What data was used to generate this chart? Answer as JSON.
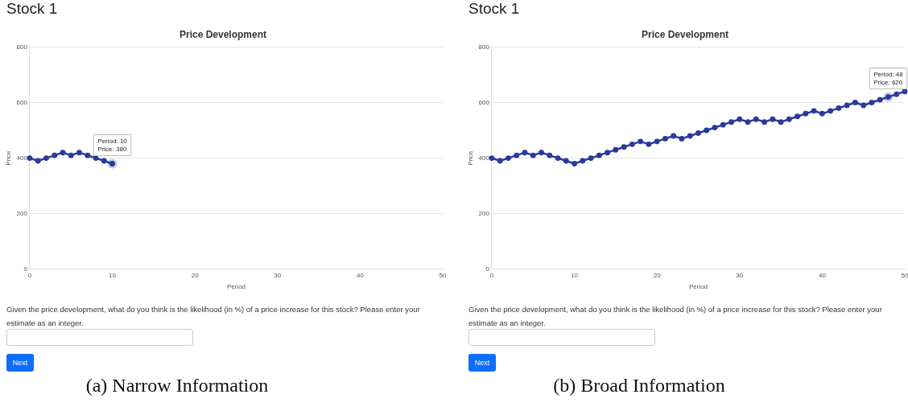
{
  "chart_data": [
    {
      "type": "line",
      "title": "Price Development",
      "xlabel": "Period",
      "ylabel": "Price",
      "x": [
        0,
        1,
        2,
        3,
        4,
        5,
        6,
        7,
        8,
        9,
        10
      ],
      "series": [
        {
          "color": "#2b3a9e",
          "values": [
            400,
            390,
            400,
            410,
            420,
            410,
            420,
            410,
            400,
            390,
            380
          ]
        }
      ],
      "xlim": [
        0,
        50
      ],
      "xticks": [
        0,
        10,
        20,
        30,
        40,
        50
      ],
      "ylim": [
        0,
        800
      ],
      "yticks": [
        0,
        200,
        400,
        600,
        800
      ],
      "grid": "y",
      "legend": false,
      "marker": "circle",
      "line_style": "solid",
      "annotations": [
        "Stock 1",
        "Given the price development, what do you think is the likelihood (in %) of a price increase for this stock? Please enter your estimate as an integer.",
        "Next",
        "(a) Narrow Information",
        {
          "text": "Period: 10\nPrice: 380",
          "x": 10,
          "y": 380
        }
      ]
    },
    {
      "type": "line",
      "title": "Price Development",
      "xlabel": "Period",
      "ylabel": "Price",
      "x": [
        0,
        1,
        2,
        3,
        4,
        5,
        6,
        7,
        8,
        9,
        10,
        11,
        12,
        13,
        14,
        15,
        16,
        17,
        18,
        19,
        20,
        21,
        22,
        23,
        24,
        25,
        26,
        27,
        28,
        29,
        30,
        31,
        32,
        33,
        34,
        35,
        36,
        37,
        38,
        39,
        40,
        41,
        42,
        43,
        44,
        45,
        46,
        47,
        48,
        49,
        50
      ],
      "series": [
        {
          "color": "#2b3a9e",
          "values": [
            400,
            390,
            400,
            410,
            420,
            410,
            420,
            410,
            400,
            390,
            380,
            390,
            400,
            410,
            420,
            430,
            440,
            450,
            460,
            450,
            460,
            470,
            480,
            470,
            480,
            490,
            500,
            510,
            520,
            530,
            540,
            530,
            540,
            530,
            540,
            530,
            540,
            550,
            560,
            570,
            560,
            570,
            580,
            590,
            600,
            590,
            600,
            610,
            620,
            630,
            640
          ]
        }
      ],
      "xlim": [
        0,
        50
      ],
      "xticks": [
        0,
        10,
        20,
        30,
        40,
        50
      ],
      "ylim": [
        0,
        800
      ],
      "yticks": [
        0,
        200,
        400,
        600,
        800
      ],
      "grid": "y",
      "legend": false,
      "marker": "circle",
      "line_style": "solid",
      "annotations": [
        "Stock 1",
        "Given the price development, what do you think is the likelihood (in %) of a price increase for this stock? Please enter your estimate as an integer.",
        "Next",
        "(b) Broad Information",
        {
          "text": "Period: 48\nPrice: 620",
          "x": 48,
          "y": 620
        }
      ]
    }
  ]
}
